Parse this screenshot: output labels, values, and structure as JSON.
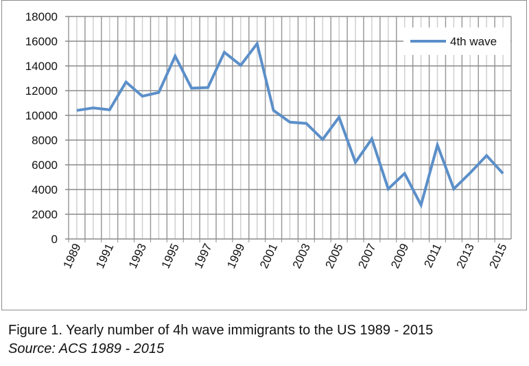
{
  "chart_data": {
    "type": "line",
    "x": [
      1989,
      1990,
      1991,
      1992,
      1993,
      1994,
      1995,
      1996,
      1997,
      1998,
      1999,
      2000,
      2001,
      2002,
      2003,
      2004,
      2005,
      2006,
      2007,
      2008,
      2009,
      2010,
      2011,
      2012,
      2013,
      2014,
      2015
    ],
    "series": [
      {
        "name": "4th wave",
        "color": "#5b8fc9",
        "values": [
          10400,
          10600,
          10450,
          12700,
          11550,
          11850,
          14800,
          12200,
          12250,
          15100,
          14050,
          15800,
          10400,
          9450,
          9350,
          8050,
          9850,
          6200,
          8100,
          4050,
          5300,
          2750,
          7600,
          4050,
          5350,
          6750,
          5300
        ]
      }
    ],
    "ylim": [
      0,
      18000
    ],
    "yticks": [
      "0",
      "2000",
      "4000",
      "6000",
      "8000",
      "10000",
      "12000",
      "14000",
      "16000",
      "18000"
    ],
    "xticks": [
      "1989",
      "1991",
      "1993",
      "1995",
      "1997",
      "1999",
      "2001",
      "2003",
      "2005",
      "2007",
      "2009",
      "2011",
      "2013",
      "2015"
    ],
    "legend": "top-right",
    "grid": true
  },
  "caption": {
    "title": "Figure 1.  Yearly number of 4h wave immigrants to the US 1989 - 2015",
    "source": "Source: ACS 1989 - 2015"
  }
}
